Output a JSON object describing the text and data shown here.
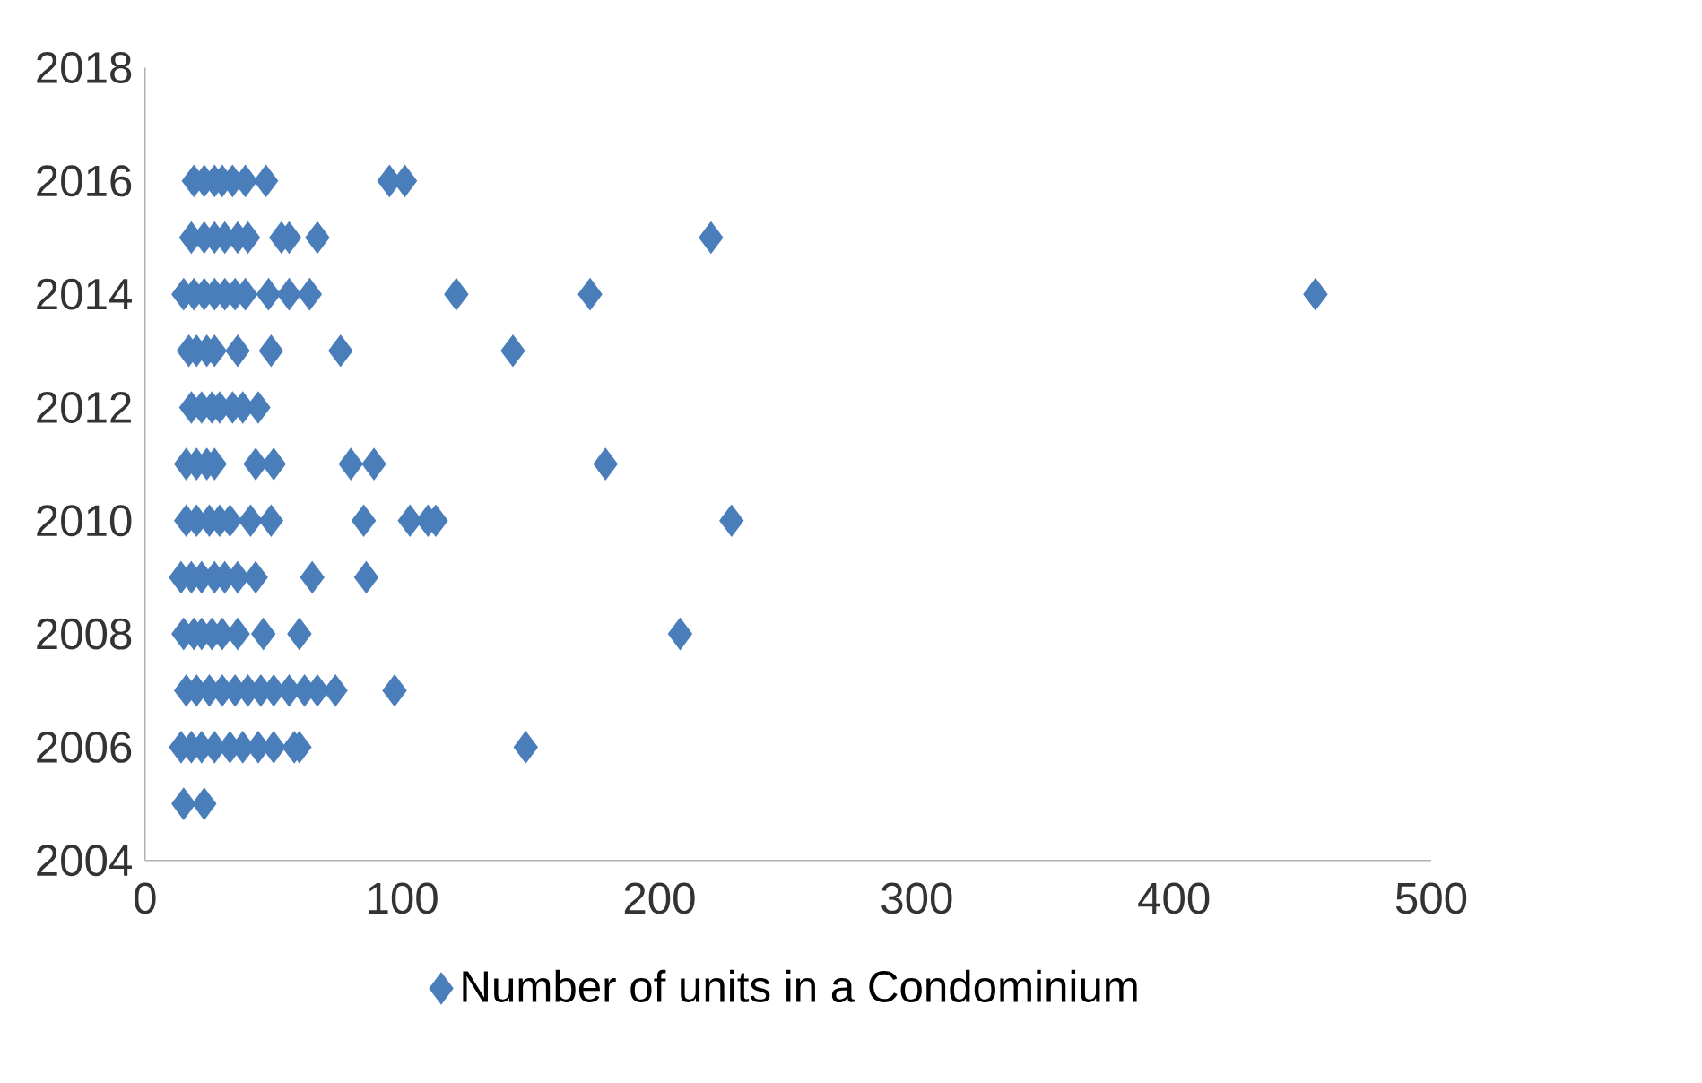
{
  "chart_data": {
    "type": "scatter",
    "marker": "diamond",
    "legend": "bottom",
    "grid": false,
    "xlim": [
      0,
      500
    ],
    "xticks": [
      0,
      100,
      200,
      300,
      400,
      500
    ],
    "ylim": [
      2004,
      2018
    ],
    "yticks": [
      2004,
      2006,
      2008,
      2010,
      2012,
      2014,
      2016,
      2018
    ],
    "series": [
      {
        "name": "Number of units  in a Condominium",
        "color": "#4a7ebb",
        "x": [
          19,
          23,
          27,
          30,
          34,
          39,
          47,
          95,
          101,
          18,
          23,
          27,
          31,
          36,
          40,
          53,
          56,
          67,
          220,
          15,
          19,
          23,
          27,
          31,
          35,
          39,
          48,
          56,
          64,
          121,
          173,
          455,
          17,
          20,
          24,
          27,
          36,
          49,
          76,
          143,
          18,
          22,
          26,
          29,
          34,
          38,
          44,
          16,
          20,
          24,
          27,
          43,
          50,
          80,
          89,
          179,
          16,
          20,
          25,
          29,
          33,
          41,
          49,
          85,
          103,
          110,
          113,
          228,
          14,
          18,
          22,
          27,
          31,
          36,
          43,
          65,
          86,
          15,
          19,
          22,
          26,
          30,
          36,
          46,
          60,
          208,
          16,
          20,
          25,
          30,
          35,
          40,
          45,
          50,
          56,
          62,
          67,
          74,
          97,
          14,
          18,
          22,
          27,
          33,
          38,
          44,
          50,
          58,
          60,
          148,
          15,
          23
        ],
        "values": [
          2016,
          2016,
          2016,
          2016,
          2016,
          2016,
          2016,
          2016,
          2016,
          2015,
          2015,
          2015,
          2015,
          2015,
          2015,
          2015,
          2015,
          2015,
          2015,
          2014,
          2014,
          2014,
          2014,
          2014,
          2014,
          2014,
          2014,
          2014,
          2014,
          2014,
          2014,
          2014,
          2013,
          2013,
          2013,
          2013,
          2013,
          2013,
          2013,
          2013,
          2012,
          2012,
          2012,
          2012,
          2012,
          2012,
          2012,
          2011,
          2011,
          2011,
          2011,
          2011,
          2011,
          2011,
          2011,
          2011,
          2010,
          2010,
          2010,
          2010,
          2010,
          2010,
          2010,
          2010,
          2010,
          2010,
          2010,
          2010,
          2009,
          2009,
          2009,
          2009,
          2009,
          2009,
          2009,
          2009,
          2009,
          2008,
          2008,
          2008,
          2008,
          2008,
          2008,
          2008,
          2008,
          2008,
          2007,
          2007,
          2007,
          2007,
          2007,
          2007,
          2007,
          2007,
          2007,
          2007,
          2007,
          2007,
          2007,
          2006,
          2006,
          2006,
          2006,
          2006,
          2006,
          2006,
          2006,
          2006,
          2006,
          2006,
          2005,
          2005
        ]
      }
    ]
  }
}
